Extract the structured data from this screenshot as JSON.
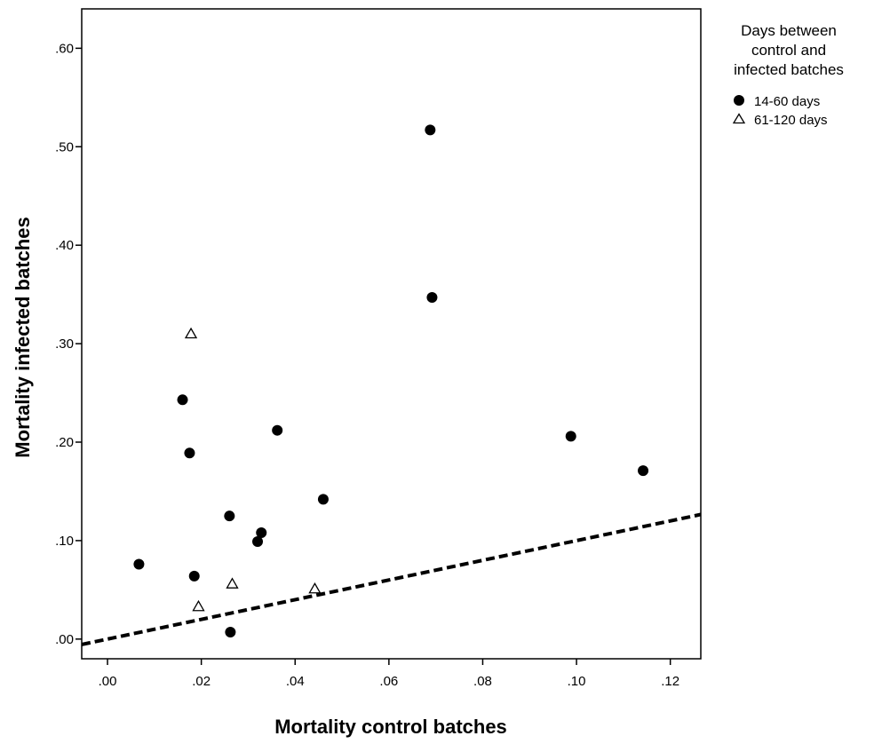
{
  "chart_data": {
    "type": "scatter",
    "xlabel": "Mortality control batches",
    "ylabel": "Mortality infected batches",
    "xlim": [
      -0.0055,
      0.1265
    ],
    "ylim": [
      -0.02,
      0.64
    ],
    "xticks": [
      0.0,
      0.02,
      0.04,
      0.06,
      0.08,
      0.1,
      0.12
    ],
    "xtick_labels": [
      ".00",
      ".02",
      ".04",
      ".06",
      ".08",
      ".10",
      ".12"
    ],
    "yticks": [
      0.0,
      0.1,
      0.2,
      0.3,
      0.4,
      0.5,
      0.6
    ],
    "ytick_labels": [
      ".00",
      ".10",
      ".20",
      ".30",
      ".40",
      ".50",
      ".60"
    ],
    "grid": false,
    "legend": {
      "title": "Days between control and infected batches",
      "title_lines": [
        "Days between",
        "control and",
        "infected batches"
      ],
      "position": "right",
      "entries": [
        {
          "label": "14-60 days",
          "marker": "filled-circle"
        },
        {
          "label": "61-120 days",
          "marker": "open-triangle"
        }
      ]
    },
    "series": [
      {
        "name": "14-60 days",
        "marker": "filled-circle",
        "color": "#000000",
        "points": [
          {
            "x": 0.0067,
            "y": 0.076
          },
          {
            "x": 0.016,
            "y": 0.243
          },
          {
            "x": 0.0175,
            "y": 0.189
          },
          {
            "x": 0.0185,
            "y": 0.064
          },
          {
            "x": 0.026,
            "y": 0.125
          },
          {
            "x": 0.0262,
            "y": 0.007
          },
          {
            "x": 0.032,
            "y": 0.099
          },
          {
            "x": 0.0328,
            "y": 0.108
          },
          {
            "x": 0.0362,
            "y": 0.212
          },
          {
            "x": 0.046,
            "y": 0.142
          },
          {
            "x": 0.0688,
            "y": 0.517
          },
          {
            "x": 0.0692,
            "y": 0.347
          },
          {
            "x": 0.0988,
            "y": 0.206
          },
          {
            "x": 0.1142,
            "y": 0.171
          }
        ]
      },
      {
        "name": "61-120 days",
        "marker": "open-triangle",
        "color": "#000000",
        "points": [
          {
            "x": 0.0178,
            "y": 0.31
          },
          {
            "x": 0.0194,
            "y": 0.033
          },
          {
            "x": 0.0266,
            "y": 0.056
          },
          {
            "x": 0.0442,
            "y": 0.051
          }
        ]
      }
    ],
    "reference_line": {
      "style": "dashed",
      "color": "#000000",
      "x": [
        -0.0055,
        0.1265
      ],
      "y": [
        -0.0055,
        0.1265
      ]
    }
  }
}
